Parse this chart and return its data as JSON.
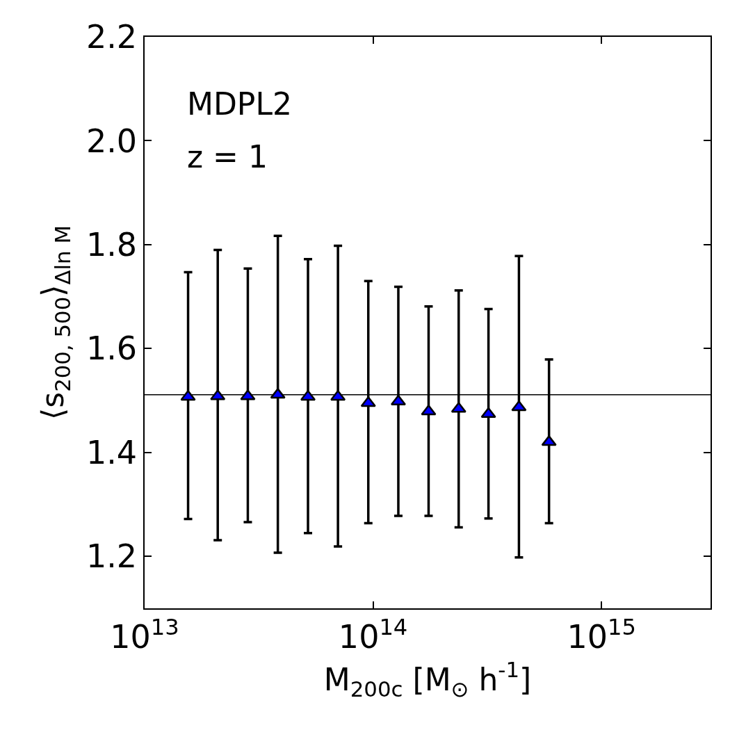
{
  "chart_data": {
    "type": "scatter",
    "xlabel": "M$_{200c}$ [M$_{⊙}$ h$^{-1}$]",
    "ylabel": "⟨s$_{200, 500}$⟩$_{Δln M}$",
    "annotations": [
      "MDPL2",
      "z = 1"
    ],
    "x": [
      15500000000000.0,
      20900000000000.0,
      28300000000000.0,
      38300000000000.0,
      51900000000000.0,
      70200000000000.0,
      95300000000000.0,
      129000000000000.0,
      175000000000000.0,
      237000000000000.0,
      320000000000000.0,
      435000000000000.0,
      589000000000000.0
    ],
    "series": [
      {
        "color": "#0000ff",
        "values": [
          1.507,
          1.508,
          1.508,
          1.511,
          1.507,
          1.507,
          1.495,
          1.498,
          1.479,
          1.484,
          1.474,
          1.487,
          1.42
        ],
        "errors": [
          [
            1.272,
            1.747
          ],
          [
            1.231,
            1.79
          ],
          [
            1.266,
            1.754
          ],
          [
            1.207,
            1.817
          ],
          [
            1.245,
            1.772
          ],
          [
            1.219,
            1.798
          ],
          [
            1.264,
            1.73
          ],
          [
            1.278,
            1.719
          ],
          [
            1.278,
            1.681
          ],
          [
            1.256,
            1.712
          ],
          [
            1.273,
            1.676
          ],
          [
            1.198,
            1.778
          ],
          [
            1.264,
            1.579
          ]
        ]
      }
    ],
    "marker": "triangle",
    "log": "x",
    "xlim": [
      10000000000000.0,
      3000000000000000.0
    ],
    "xticks": [
      {
        "value": 10000000000000.0,
        "label": "10$^{13}$"
      },
      {
        "value": 100000000000000.0,
        "label": "10$^{14}$"
      },
      {
        "value": 1000000000000000.0,
        "label": "10$^{15}$"
      }
    ],
    "ylim": [
      1.1,
      2.2
    ],
    "yticks": [
      {
        "value": 1.2,
        "label": "1.2"
      },
      {
        "value": 1.4,
        "label": "1.4"
      },
      {
        "value": 1.6,
        "label": "1.6"
      },
      {
        "value": 1.8,
        "label": "1.8"
      },
      {
        "value": 2.0,
        "label": "2.0"
      },
      {
        "value": 2.2,
        "label": "2.2"
      }
    ],
    "ref_lines": [
      {
        "axis": "y",
        "value": 1.511,
        "color": "#000000"
      }
    ],
    "grid": false,
    "legend": false
  }
}
